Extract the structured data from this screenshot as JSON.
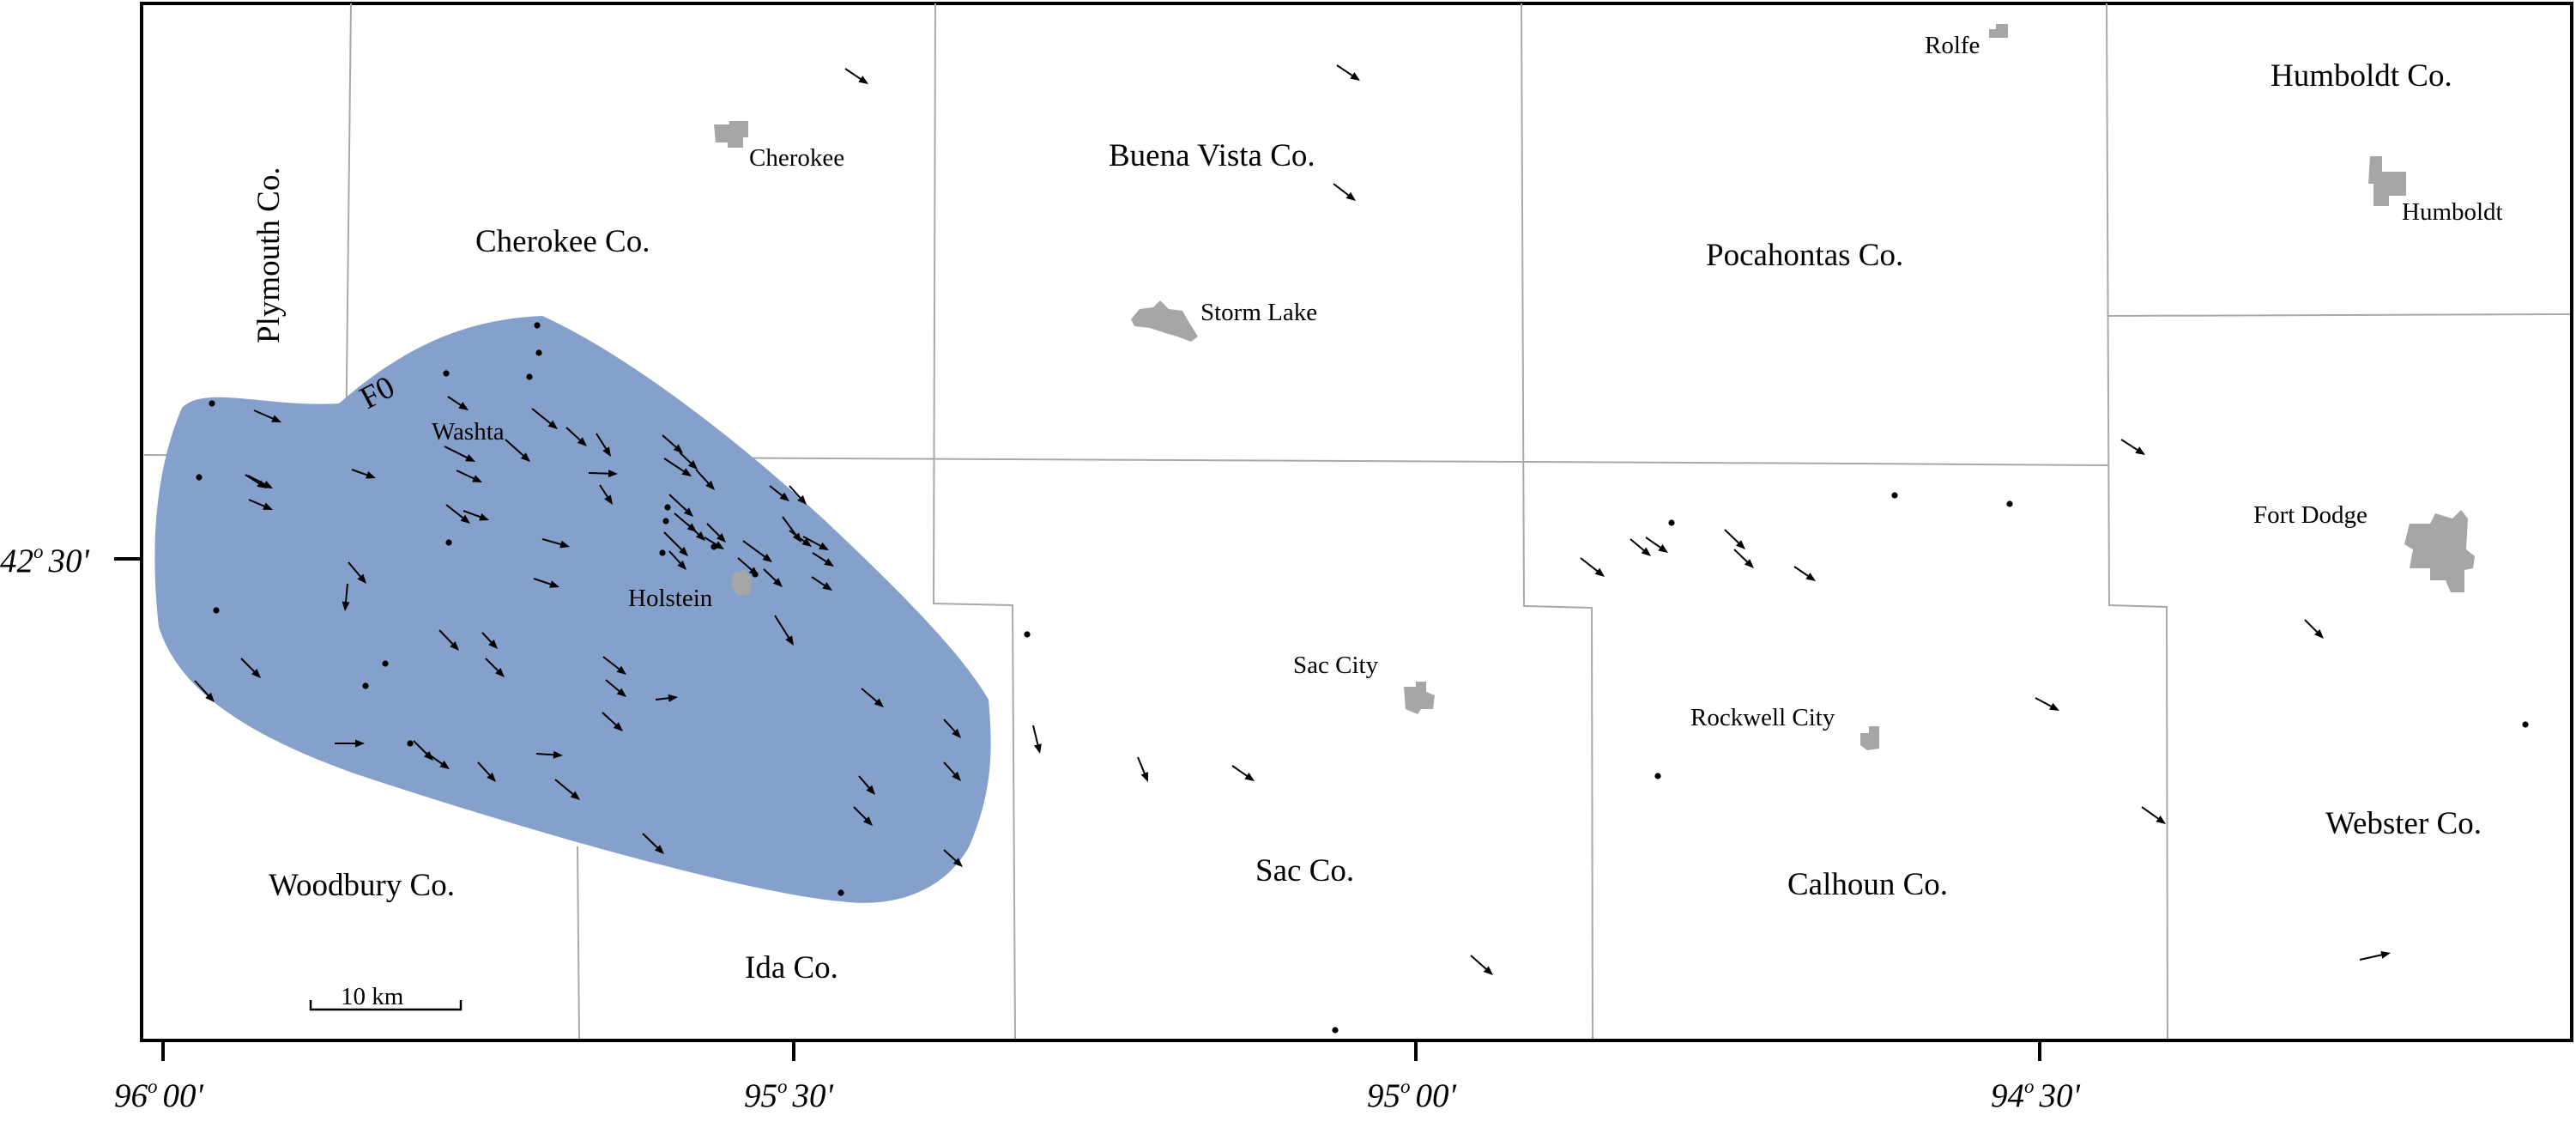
{
  "colors": {
    "swath": "#84a0cb",
    "towns": "#a6a6a6",
    "county_lines": "#a8a8a8",
    "symbols": "#000000"
  },
  "counties": {
    "plymouth": "Plymouth Co.",
    "cherokee": "Cherokee Co.",
    "buena_vista": "Buena Vista Co.",
    "pocahontas": "Pocahontas Co.",
    "humboldt": "Humboldt Co.",
    "woodbury": "Woodbury Co.",
    "ida": "Ida Co.",
    "sac": "Sac Co.",
    "calhoun": "Calhoun Co.",
    "webster": "Webster Co."
  },
  "towns": {
    "cherokee": "Cherokee",
    "storm_lake": "Storm Lake",
    "rolfe": "Rolfe",
    "humboldt": "Humboldt",
    "fort_dodge": "Fort Dodge",
    "washta": "Washta",
    "holstein": "Holstein",
    "sac_city": "Sac City",
    "rockwell_city": "Rockwell City"
  },
  "swath_label": "F0",
  "scale": {
    "label": "10 km"
  },
  "axes": {
    "latitude": {
      "degrees": "42",
      "minutes": "30'"
    },
    "longitude": [
      {
        "degrees": "96",
        "minutes": "00'"
      },
      {
        "degrees": "95",
        "minutes": "30'"
      },
      {
        "degrees": "95",
        "minutes": "00'"
      },
      {
        "degrees": "94",
        "minutes": "30'"
      }
    ],
    "degree_symbol": "o"
  },
  "symbols": {
    "arrow": "wind-direction-arrow",
    "dot": "calm-observation-dot"
  }
}
